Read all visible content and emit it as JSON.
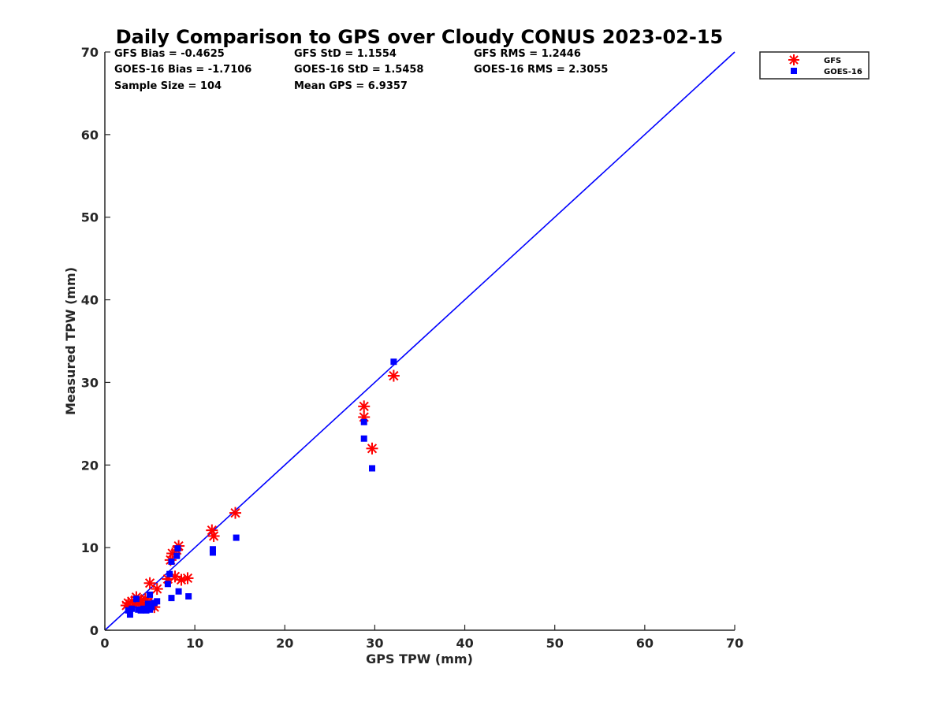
{
  "chart_data": {
    "type": "scatter",
    "title": "Daily Comparison to GPS over Cloudy CONUS 2023-02-15",
    "xlabel": "GPS TPW (mm)",
    "ylabel": "Measured TPW (mm)",
    "xlim": [
      0,
      70
    ],
    "ylim": [
      0,
      70
    ],
    "xticks": [
      0,
      10,
      20,
      30,
      40,
      50,
      60,
      70
    ],
    "yticks": [
      0,
      10,
      20,
      30,
      40,
      50,
      60,
      70
    ],
    "grid": false,
    "legend_position": "outside-top-right",
    "reference_line": {
      "name": "1:1 line",
      "x": [
        0,
        70
      ],
      "y": [
        0,
        70
      ],
      "color": "#0000ff"
    },
    "stats": [
      {
        "text": "GFS Bias = -0.4625",
        "col": 0,
        "row": 0
      },
      {
        "text": "GFS StD = 1.1554",
        "col": 1,
        "row": 0
      },
      {
        "text": "GFS RMS = 1.2446",
        "col": 2,
        "row": 0
      },
      {
        "text": "GOES-16 Bias = -1.7106",
        "col": 0,
        "row": 1
      },
      {
        "text": "GOES-16 StD = 1.5458",
        "col": 1,
        "row": 1
      },
      {
        "text": "GOES-16 RMS = 2.3055",
        "col": 2,
        "row": 1
      },
      {
        "text": "Sample Size = 104",
        "col": 0,
        "row": 2
      },
      {
        "text": "Mean GPS = 6.9357",
        "col": 1,
        "row": 2
      }
    ],
    "series": [
      {
        "name": "GFS",
        "marker": "asterisk",
        "color": "#ff0000",
        "points": [
          [
            2.4,
            3.0
          ],
          [
            2.6,
            3.3
          ],
          [
            2.8,
            2.8
          ],
          [
            3.0,
            3.5
          ],
          [
            3.2,
            3.0
          ],
          [
            3.5,
            4.0
          ],
          [
            3.8,
            3.2
          ],
          [
            4.0,
            3.6
          ],
          [
            4.2,
            3.1
          ],
          [
            4.5,
            3.8
          ],
          [
            4.8,
            3.4
          ],
          [
            5.0,
            5.7
          ],
          [
            5.2,
            3.0
          ],
          [
            5.5,
            2.8
          ],
          [
            5.8,
            5.0
          ],
          [
            7.0,
            6.2
          ],
          [
            7.3,
            8.5
          ],
          [
            7.5,
            9.3
          ],
          [
            7.8,
            6.5
          ],
          [
            8.0,
            9.7
          ],
          [
            8.2,
            10.2
          ],
          [
            8.5,
            6.1
          ],
          [
            9.2,
            6.3
          ],
          [
            11.9,
            12.1
          ],
          [
            12.1,
            11.4
          ],
          [
            14.5,
            14.2
          ],
          [
            28.8,
            27.1
          ],
          [
            28.8,
            25.8
          ],
          [
            29.7,
            22.0
          ],
          [
            32.1,
            30.8
          ]
        ]
      },
      {
        "name": "GOES-16",
        "marker": "square",
        "color": "#0000ff",
        "points": [
          [
            2.6,
            2.4
          ],
          [
            2.8,
            1.9
          ],
          [
            3.0,
            2.6
          ],
          [
            3.5,
            3.8
          ],
          [
            3.7,
            2.5
          ],
          [
            4.0,
            2.4
          ],
          [
            4.3,
            2.6
          ],
          [
            4.6,
            2.4
          ],
          [
            4.8,
            3.2
          ],
          [
            5.0,
            2.5
          ],
          [
            5.0,
            4.3
          ],
          [
            5.2,
            2.8
          ],
          [
            5.5,
            3.3
          ],
          [
            5.8,
            3.5
          ],
          [
            7.0,
            5.6
          ],
          [
            7.2,
            6.8
          ],
          [
            7.4,
            8.3
          ],
          [
            7.4,
            3.9
          ],
          [
            8.0,
            9.0
          ],
          [
            8.1,
            9.9
          ],
          [
            8.2,
            4.7
          ],
          [
            9.3,
            4.1
          ],
          [
            12.0,
            9.8
          ],
          [
            12.0,
            9.4
          ],
          [
            14.6,
            11.2
          ],
          [
            28.8,
            25.2
          ],
          [
            28.8,
            23.2
          ],
          [
            29.7,
            19.6
          ],
          [
            32.1,
            32.5
          ]
        ]
      }
    ]
  }
}
